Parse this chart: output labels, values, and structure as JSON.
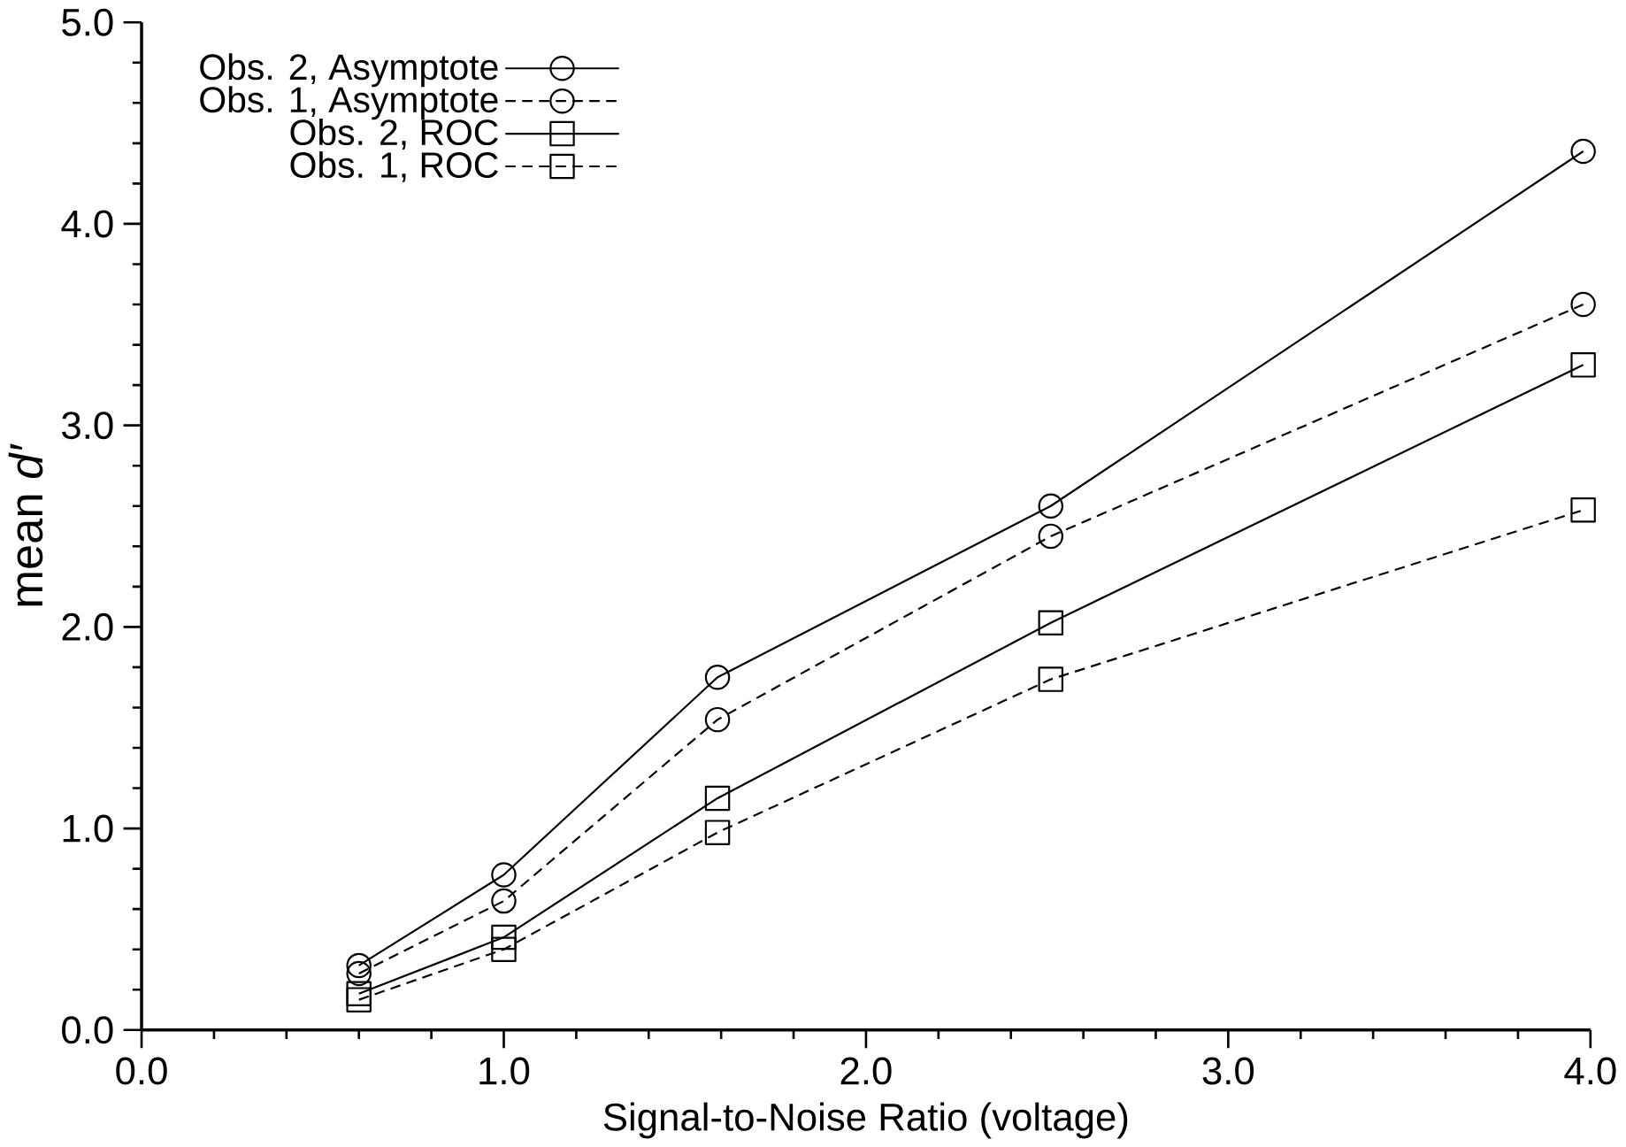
{
  "chart_data": {
    "type": "line",
    "xlabel": "Signal-to-Noise Ratio (voltage)",
    "ylabel": "mean *d′*",
    "x": [
      0.6,
      1.0,
      1.59,
      2.51,
      3.98
    ],
    "series": [
      {
        "name": "Obs. 2, Asymptote",
        "color": "#000000",
        "marker": "circle",
        "line_style": "solid",
        "values": [
          0.32,
          0.77,
          1.75,
          2.6,
          4.36
        ]
      },
      {
        "name": "Obs. 1, Asymptote",
        "color": "#000000",
        "marker": "circle",
        "line_style": "dashed",
        "values": [
          0.28,
          0.64,
          1.54,
          2.45,
          3.6
        ]
      },
      {
        "name": "Obs. 2, ROC",
        "color": "#000000",
        "marker": "square",
        "line_style": "solid",
        "values": [
          0.18,
          0.46,
          1.15,
          2.02,
          3.3
        ]
      },
      {
        "name": "Obs. 1, ROC",
        "color": "#000000",
        "marker": "square",
        "line_style": "dashed",
        "values": [
          0.15,
          0.4,
          0.98,
          1.74,
          2.58
        ]
      }
    ],
    "xlim": [
      0,
      4
    ],
    "ylim": [
      0,
      5
    ],
    "xticks": [
      {
        "value": 0,
        "label": "0.0"
      },
      {
        "value": 1,
        "label": "1.0"
      },
      {
        "value": 2,
        "label": "2.0"
      },
      {
        "value": 3,
        "label": "3.0"
      },
      {
        "value": 4,
        "label": "4.0"
      }
    ],
    "yticks": [
      {
        "value": 0,
        "label": "0.0"
      },
      {
        "value": 1,
        "label": "1.0"
      },
      {
        "value": 2,
        "label": "2.0"
      },
      {
        "value": 3,
        "label": "3.0"
      },
      {
        "value": 4,
        "label": "4.0"
      },
      {
        "value": 5,
        "label": "5.0"
      }
    ],
    "grid": false,
    "legend": "top left"
  }
}
